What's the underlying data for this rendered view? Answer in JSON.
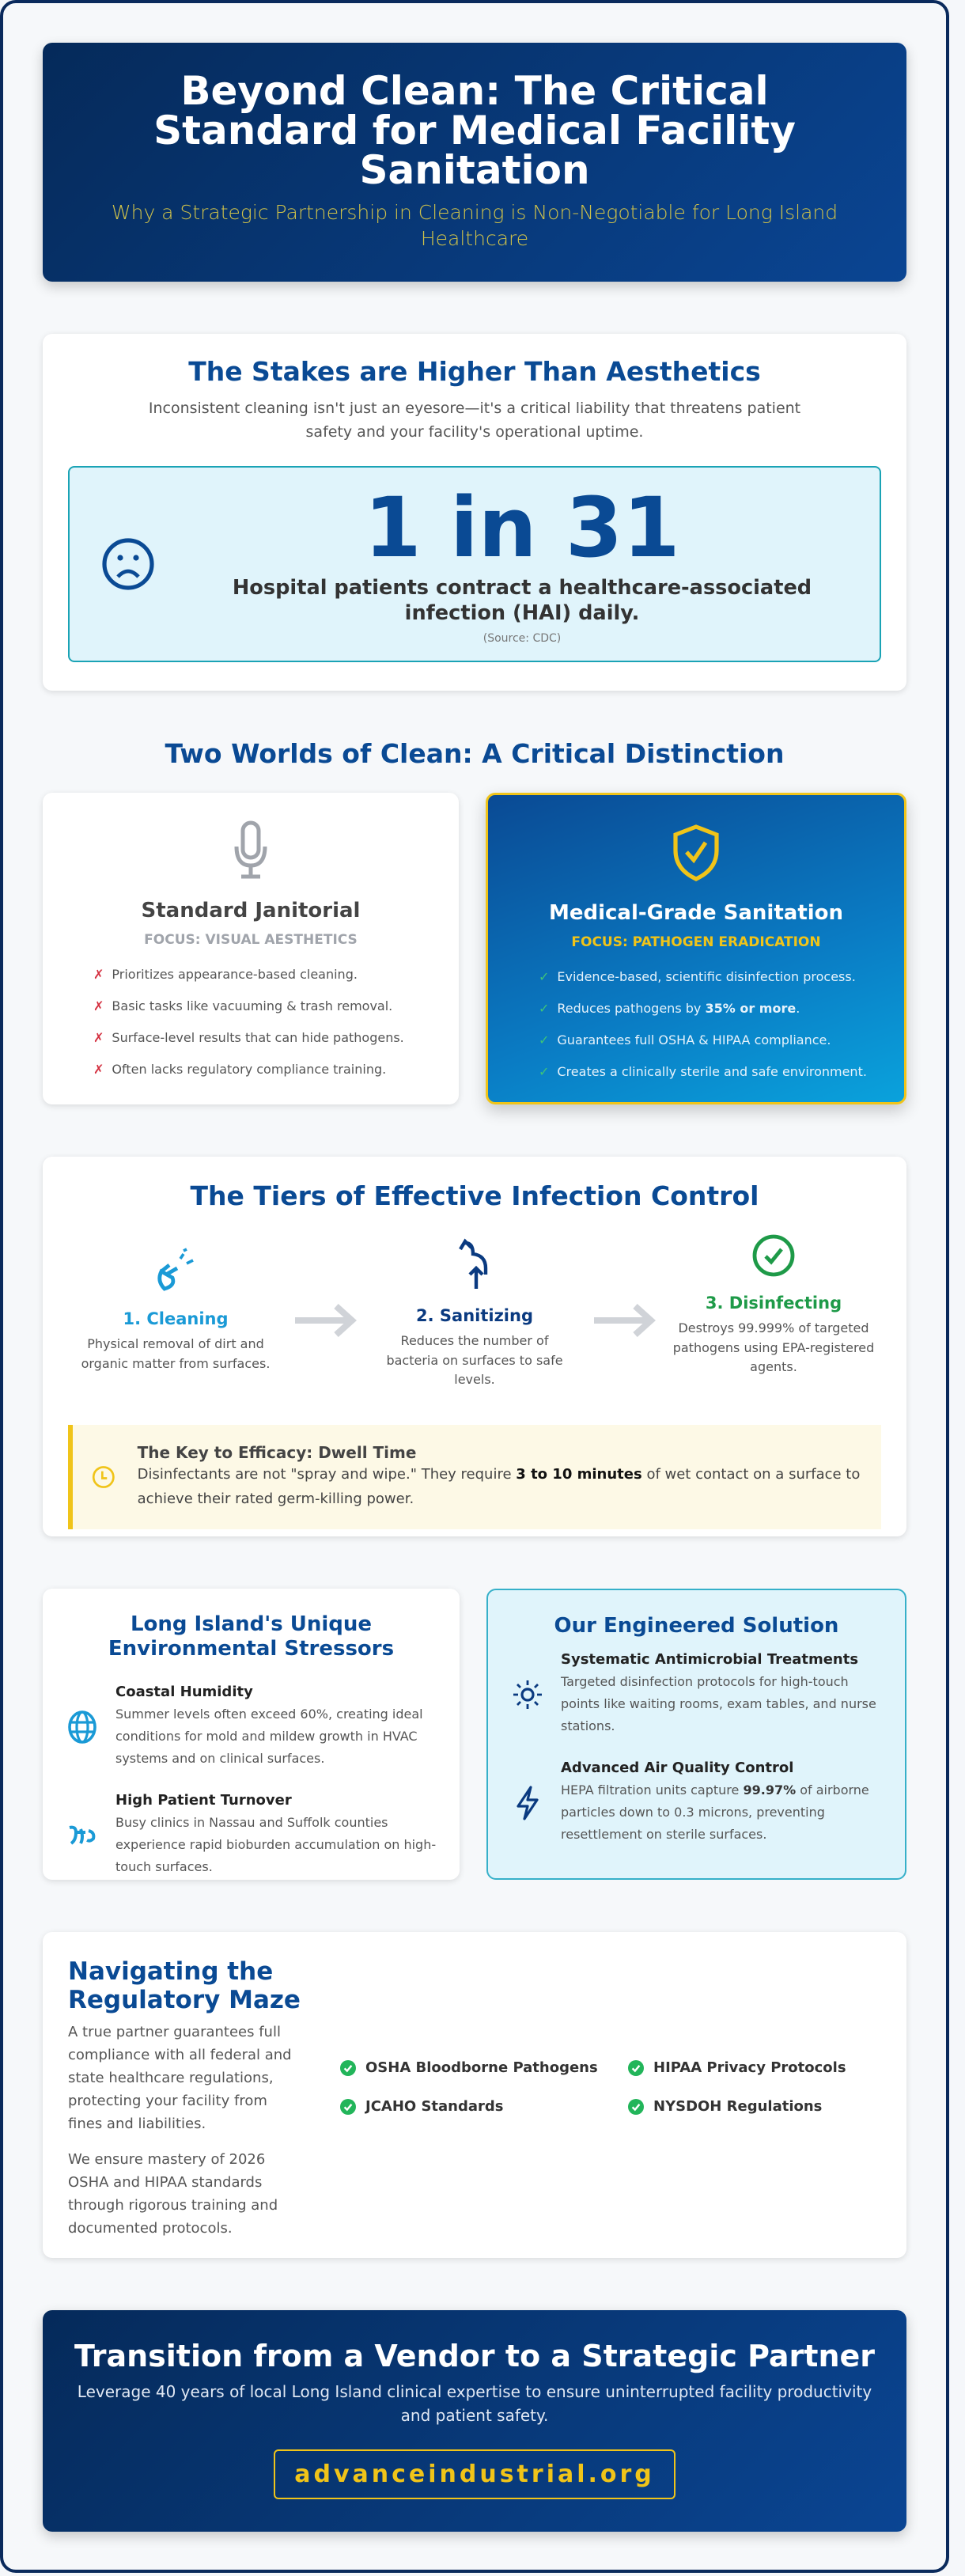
{
  "header": {
    "title": "Beyond Clean: The Critical Standard for Medical Facility Sanitation",
    "subtitle": "Why a Strategic Partnership in Cleaning is Non-Negotiable for Long Island Healthcare"
  },
  "stakes": {
    "title": "The Stakes are Higher Than Aesthetics",
    "text": "Inconsistent cleaning isn't just an eyesore—it's a critical liability that threatens patient safety and your facility's operational uptime.",
    "stat": "1 in 31",
    "stat_desc": "Hospital patients contract a healthcare-associated infection (HAI) daily.",
    "source": "(Source: CDC)",
    "icon": "sad-face-icon"
  },
  "worlds": {
    "title": "Two Worlds of Clean: A Critical Distinction",
    "standard": {
      "icon": "microphone-icon",
      "title": "Standard Janitorial",
      "focus": "FOCUS: VISUAL AESTHETICS",
      "mark": "✗",
      "items": [
        "Prioritizes appearance-based cleaning.",
        "Basic tasks like vacuuming & trash removal.",
        "Surface-level results that can hide pathogens.",
        "Often lacks regulatory compliance training."
      ]
    },
    "medical": {
      "icon": "shield-check-icon",
      "title": "Medical-Grade Sanitation",
      "focus": "FOCUS: PATHOGEN ERADICATION",
      "mark": "✓",
      "items": [
        "Evidence-based, scientific disinfection process.",
        "Reduces pathogens by ",
        "Guarantees full OSHA & HIPAA compliance.",
        "Creates a clinically sterile and safe environment."
      ],
      "item2_bold": "35% or more",
      "item2_end": "."
    }
  },
  "tiers": {
    "title": "The Tiers of Effective Infection Control",
    "steps": [
      {
        "title": "1. Cleaning",
        "desc": "Physical removal of dirt and organic matter from surfaces.",
        "color": "#1a9ad6"
      },
      {
        "title": "2. Sanitizing",
        "desc": "Reduces the number of bacteria on surfaces to safe levels.",
        "color": "#0a3a80"
      },
      {
        "title": "3. Disinfecting",
        "desc": "Destroys 99.999% of targeted pathogens using EPA-registered agents.",
        "color": "#1e9a48"
      }
    ],
    "key": {
      "title": "The Key to Efficacy: Dwell Time",
      "pre": "Disinfectants are not \"spray and wipe.\" They require ",
      "bold": "3 to 10 minutes",
      "post": " of wet contact on a surface to achieve their rated germ-killing power."
    }
  },
  "stressors": {
    "title": "Long Island's Unique Environmental Stressors",
    "items": [
      {
        "title": "Coastal Humidity",
        "desc": "Summer levels often exceed 60%, creating ideal conditions for mold and mildew growth in HVAC systems and on clinical surfaces."
      },
      {
        "title": "High Patient Turnover",
        "desc": "Busy clinics in Nassau and Suffolk counties experience rapid bioburden accumulation on high-touch surfaces."
      }
    ]
  },
  "solution": {
    "title": "Our Engineered Solution",
    "items": [
      {
        "title": "Systematic Antimicrobial Treatments",
        "desc": "Targeted disinfection protocols for high-touch points like waiting rooms, exam tables, and nurse stations."
      },
      {
        "title": "Advanced Air Quality Control",
        "pre": "HEPA filtration units capture ",
        "bold": "99.97%",
        "post": " of airborne particles down to 0.3 microns, preventing resettlement on sterile surfaces."
      }
    ]
  },
  "regulatory": {
    "title": "Navigating the Regulatory Maze",
    "p1": "A true partner guarantees full compliance with all federal and state healthcare regulations, protecting your facility from fines and liabilities.",
    "p2": "We ensure mastery of 2026 OSHA and HIPAA standards through rigorous training and documented protocols.",
    "items": [
      "OSHA Bloodborne Pathogens",
      "HIPAA Privacy Protocols",
      "JCAHO Standards",
      "NYSDOH Regulations"
    ]
  },
  "cta": {
    "title": "Transition from a Vendor to a Strategic Partner",
    "text": "Leverage 40 years of local Long Island clinical expertise to ensure uninterrupted facility productivity and patient safety.",
    "link": "advanceindustrial.org"
  },
  "colors": {
    "navy": "#0a2a5c",
    "brand_blue": "#0a4a94",
    "gold": "#f0c419",
    "teal": "#1aa3b5"
  }
}
